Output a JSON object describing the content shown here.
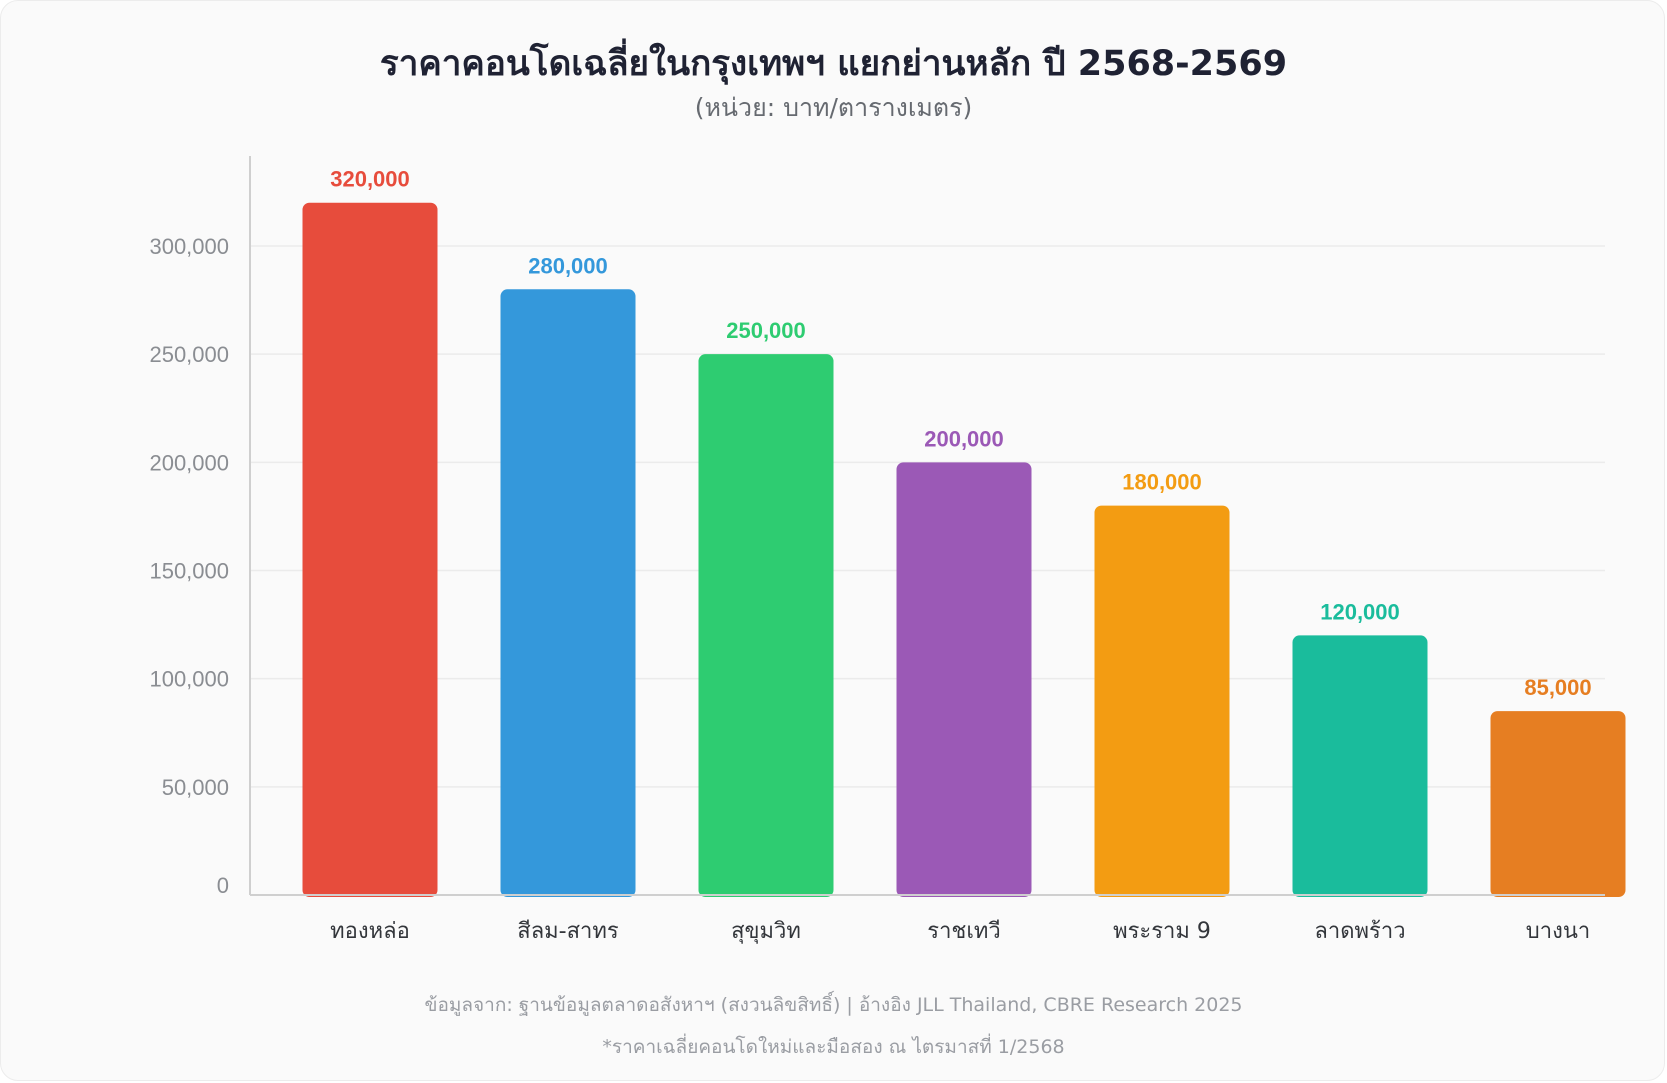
{
  "chart_data": {
    "type": "bar",
    "title": "ราคาคอนโดเฉลี่ยในกรุงเทพฯ แยกย่านหลัก ปี 2568-2569",
    "subtitle": "(หน่วย: บาท/ตารางเมตร)",
    "categories": [
      "ทองหล่อ",
      "สีลม-สาทร",
      "สุขุมวิท",
      "ราชเทวี",
      "พระราม 9",
      "ลาดพร้าว",
      "บางนา"
    ],
    "values": [
      320000,
      280000,
      250000,
      200000,
      180000,
      120000,
      85000
    ],
    "value_labels": [
      "320,000",
      "280,000",
      "250,000",
      "200,000",
      "180,000",
      "120,000",
      "85,000"
    ],
    "colors": [
      "#e74c3c",
      "#3498db",
      "#2ecc71",
      "#9b59b6",
      "#f39c12",
      "#1abc9c",
      "#e67e22"
    ],
    "label_colors": [
      "#e74c3c",
      "#3498db",
      "#2ecc71",
      "#9b59b6",
      "#f39c12",
      "#1abc9c",
      "#e67e22"
    ],
    "yticks": [
      0,
      50000,
      100000,
      150000,
      200000,
      250000,
      300000
    ],
    "ytick_labels": [
      "0",
      "50,000",
      "100,000",
      "150,000",
      "200,000",
      "250,000",
      "300,000"
    ],
    "ylim": [
      0,
      340000
    ],
    "grid": true,
    "legend": "none",
    "xlabel": "",
    "ylabel": ""
  },
  "footer": {
    "source": "ข้อมูลจาก: ฐานข้อมูลตลาดอสังหาฯ (สงวนลิขสิทธิ์) | อ้างอิง JLL Thailand, CBRE Research 2025",
    "note": "*ราคาเฉลี่ยคอนโดใหม่และมือสอง ณ ไตรมาสที่ 1/2568"
  }
}
